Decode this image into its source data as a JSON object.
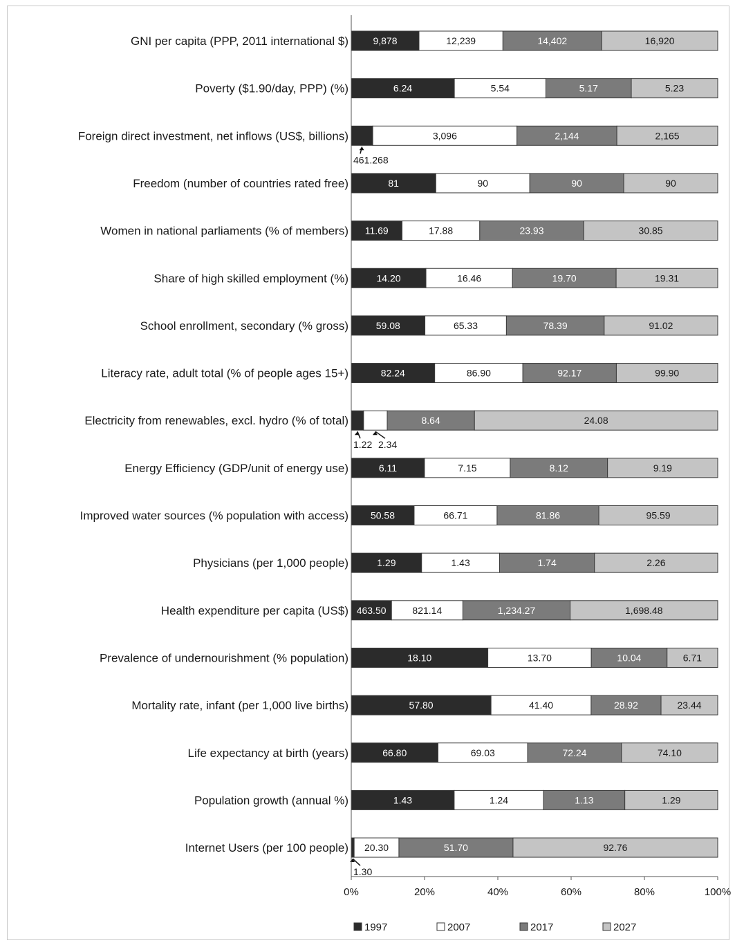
{
  "chart_data": {
    "type": "bar",
    "orientation": "horizontal",
    "stacked": "percent",
    "categories": [
      "GNI per capita (PPP, 2011 international $)",
      "Poverty ($1.90/day, PPP) (%)",
      "Foreign direct investment, net inflows (US$, billions)",
      "Freedom (number of countries rated free)",
      "Women in national parliaments (% of members)",
      "Share of high skilled employment (%)",
      "School enrollment, secondary (% gross)",
      "Literacy rate, adult total (% of people ages 15+)",
      "Electricity from renewables, excl. hydro (% of total)",
      "Energy Efficiency (GDP/unit of energy use)",
      "Improved water sources (% population with access)",
      "Physicians (per 1,000 people)",
      "Health expenditure per capita (US$)",
      "Prevalence of undernourishment (% population)",
      "Mortality rate, infant (per 1,000 live births)",
      "Life expectancy at birth (years)",
      "Population growth (annual %)",
      "Internet Users (per 100 people)"
    ],
    "series": [
      {
        "name": "1997",
        "color": "#2b2b2b",
        "text_color": "#ffffff",
        "values": [
          9878,
          6.24,
          461.268,
          81,
          11.69,
          14.2,
          59.08,
          82.24,
          1.22,
          6.11,
          50.58,
          1.29,
          463.5,
          18.1,
          57.8,
          66.8,
          1.43,
          1.3
        ],
        "labels": [
          "9,878",
          "6.24",
          "461.268",
          "81",
          "11.69",
          "14.20",
          "59.08",
          "82.24",
          "1.22",
          "6.11",
          "50.58",
          "1.29",
          "463.50",
          "18.10",
          "57.80",
          "66.80",
          "1.43",
          "1.30"
        ]
      },
      {
        "name": "2007",
        "color": "#ffffff",
        "text_color": "#1a1a1a",
        "values": [
          12239,
          5.54,
          3096,
          90,
          17.88,
          16.46,
          65.33,
          86.9,
          2.34,
          7.15,
          66.71,
          1.43,
          821.14,
          13.7,
          41.4,
          69.03,
          1.24,
          20.3
        ],
        "labels": [
          "12,239",
          "5.54",
          "3,096",
          "90",
          "17.88",
          "16.46",
          "65.33",
          "86.90",
          "2.34",
          "7.15",
          "66.71",
          "1.43",
          "821.14",
          "13.70",
          "41.40",
          "69.03",
          "1.24",
          "20.30"
        ]
      },
      {
        "name": "2017",
        "color": "#7b7b7b",
        "text_color": "#ffffff",
        "values": [
          14402,
          5.17,
          2144,
          90,
          23.93,
          19.7,
          78.39,
          92.17,
          8.64,
          8.12,
          81.86,
          1.74,
          1234.27,
          10.04,
          28.92,
          72.24,
          1.13,
          51.7
        ],
        "labels": [
          "14,402",
          "5.17",
          "2,144",
          "90",
          "23.93",
          "19.70",
          "78.39",
          "92.17",
          "8.64",
          "8.12",
          "81.86",
          "1.74",
          "1,234.27",
          "10.04",
          "28.92",
          "72.24",
          "1.13",
          "51.70"
        ]
      },
      {
        "name": "2027",
        "color": "#c4c4c4",
        "text_color": "#1a1a1a",
        "values": [
          16920,
          5.23,
          2165,
          90,
          30.85,
          19.31,
          91.02,
          99.9,
          24.08,
          9.19,
          95.59,
          2.26,
          1698.48,
          6.71,
          23.44,
          74.1,
          1.29,
          92.76
        ],
        "labels": [
          "16,920",
          "5.23",
          "2,165",
          "90",
          "30.85",
          "19.31",
          "91.02",
          "99.90",
          "24.08",
          "9.19",
          "95.59",
          "2.26",
          "1,698.48",
          "6.71",
          "23.44",
          "74.10",
          "1.29",
          "92.76"
        ]
      }
    ],
    "callouts": [
      {
        "category_index": 2,
        "series_index": 0,
        "text": "461.268"
      },
      {
        "category_index": 8,
        "series_index": 0,
        "text": "1.22"
      },
      {
        "category_index": 8,
        "series_index": 1,
        "text": "2.34"
      },
      {
        "category_index": 17,
        "series_index": 0,
        "text": "1.30"
      }
    ],
    "xlim": [
      0,
      100
    ],
    "xticks": [
      "0%",
      "20%",
      "40%",
      "60%",
      "80%",
      "100%"
    ],
    "title": "",
    "xlabel": "",
    "ylabel": "",
    "legend": {
      "placement": "bottom",
      "entries": [
        "1997",
        "2007",
        "2017",
        "2027"
      ]
    },
    "grid": false
  }
}
